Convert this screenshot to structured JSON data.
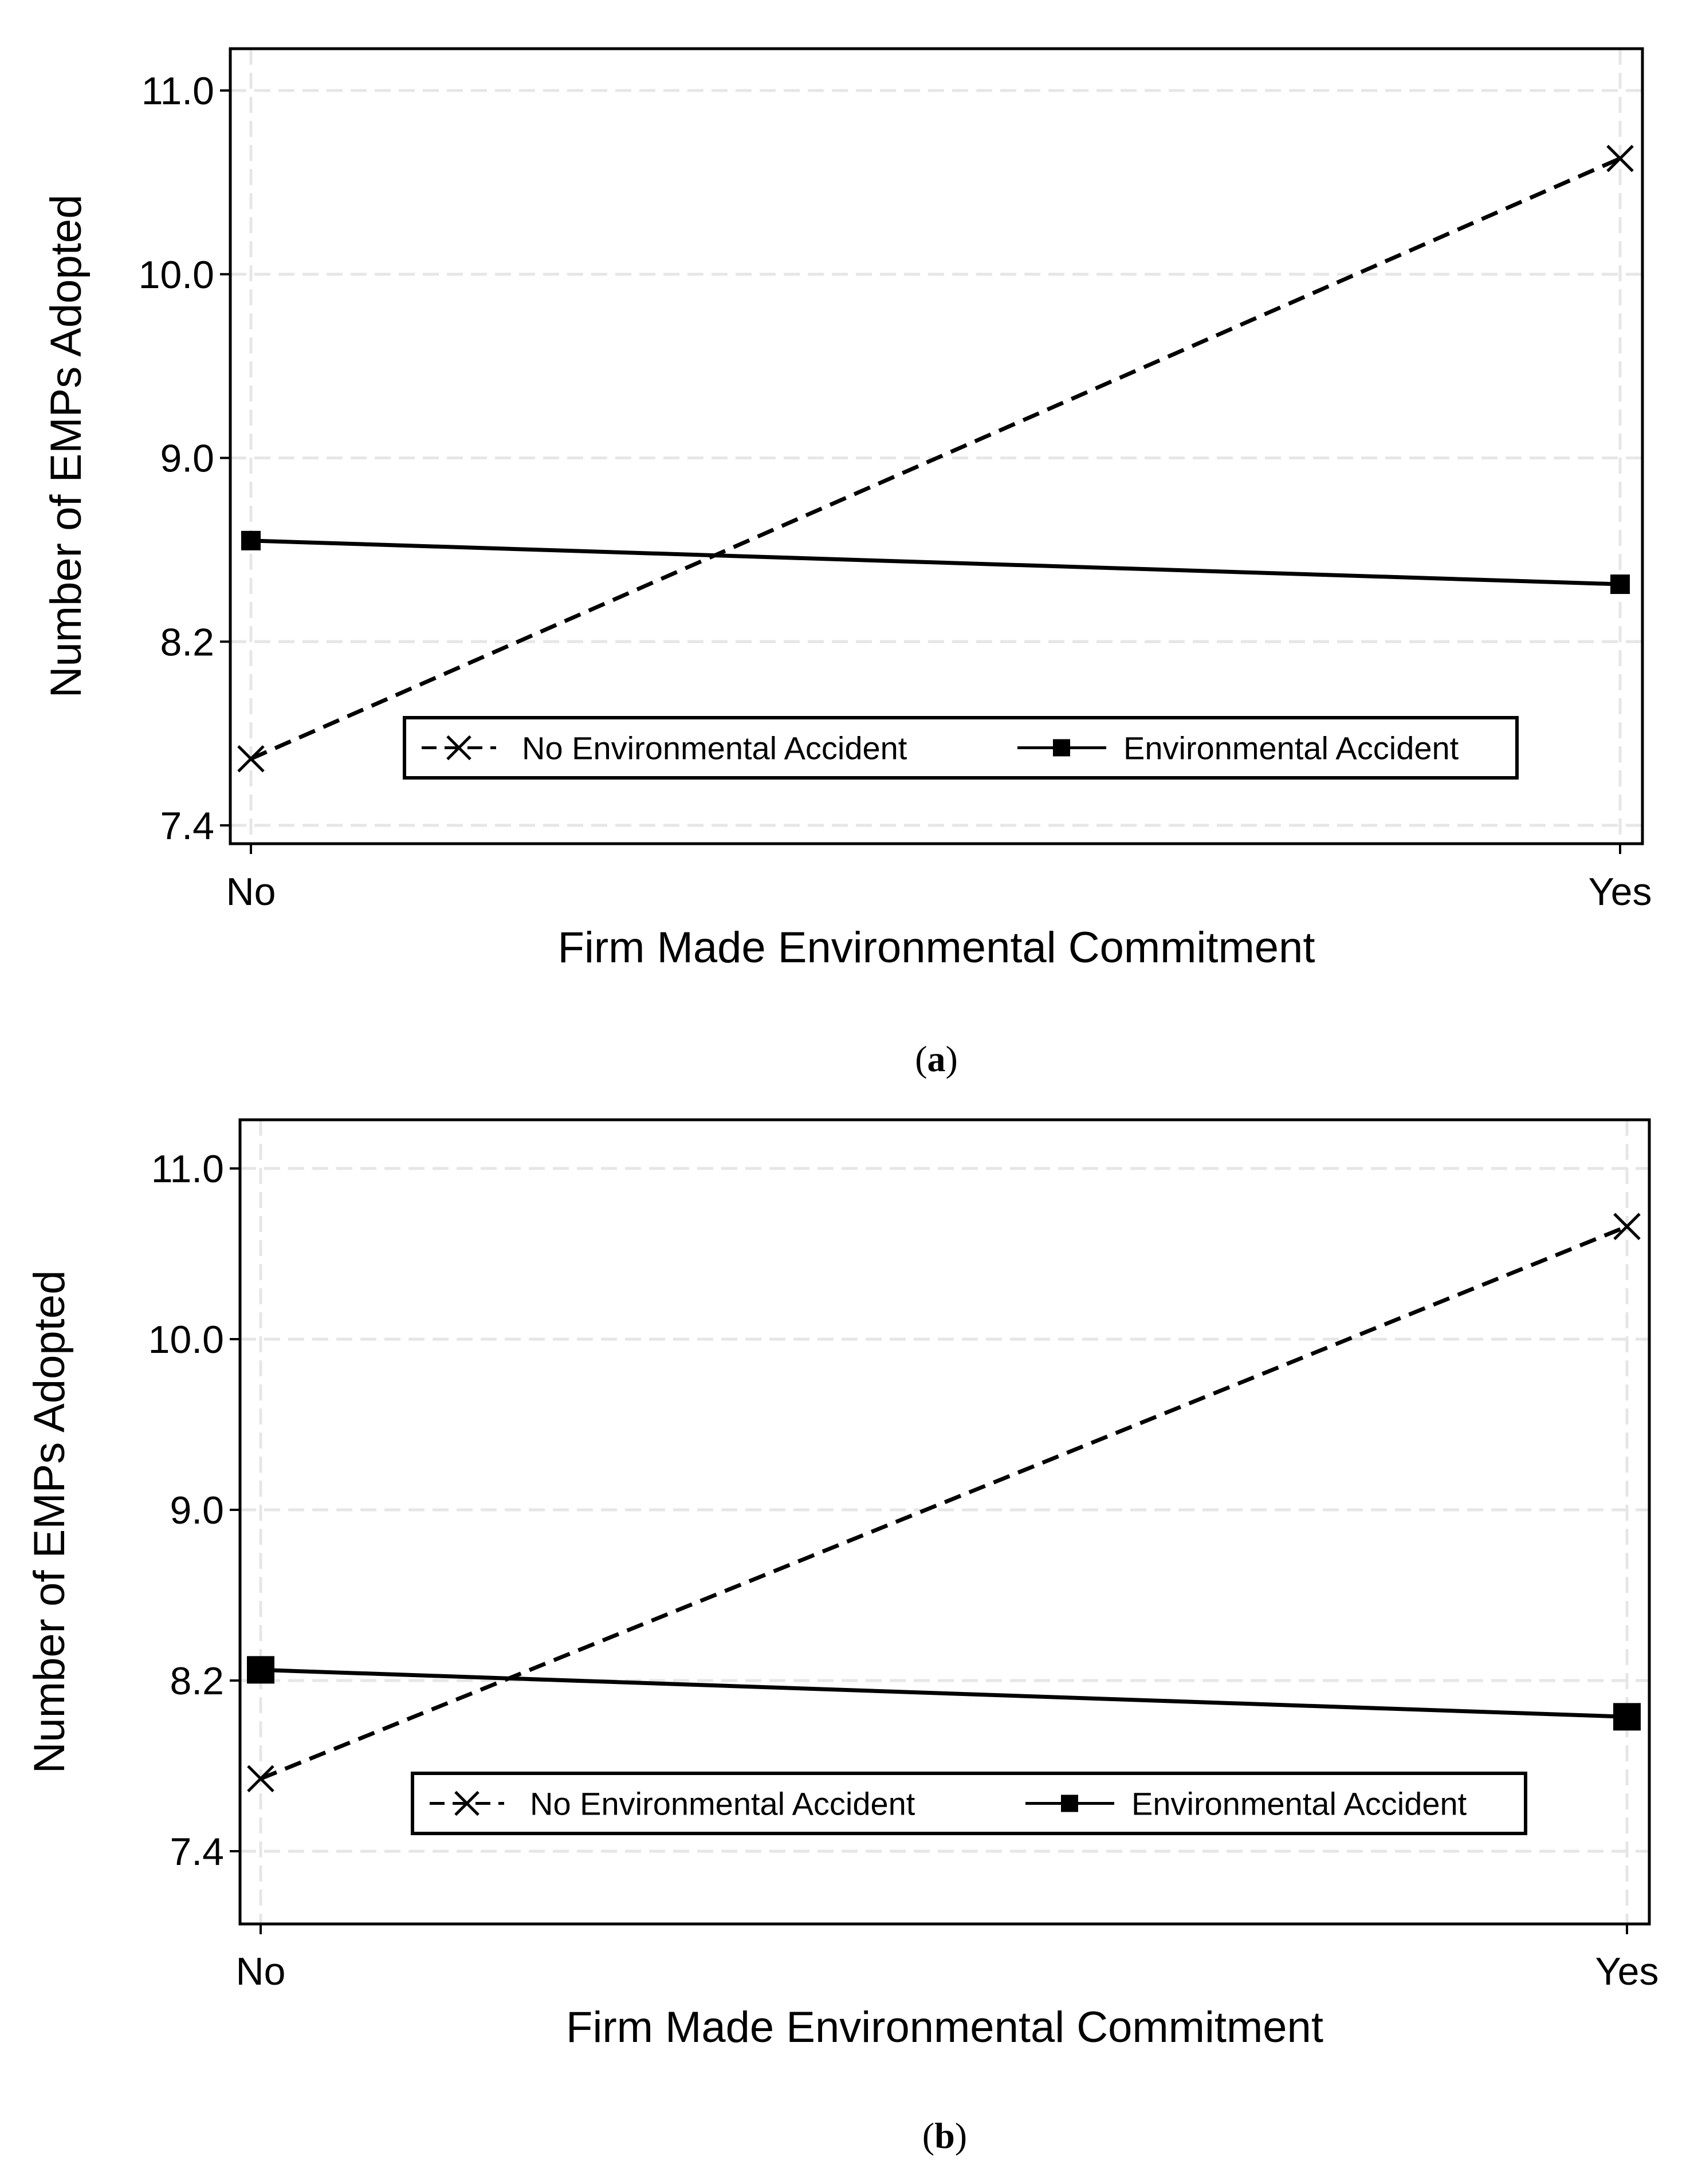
{
  "chart_data": [
    {
      "type": "line",
      "caption": "(a)",
      "caption_letter": "a",
      "xlabel": "Firm Made Environmental Commitment",
      "ylabel": "Number of EMPs Adopted",
      "categories": [
        "No",
        "Yes"
      ],
      "y_tick_labels": [
        "11.0",
        "10.0",
        "9.0",
        "8.2",
        "7.4"
      ],
      "y_tick_values": [
        11.0,
        10.0,
        9.0,
        8.2,
        7.4
      ],
      "grid": true,
      "legend_position": "bottom-center (inside)",
      "series": [
        {
          "name": "No Environmental Accident",
          "style": "dashed",
          "marker": "x",
          "values": [
            7.69,
            10.63
          ]
        },
        {
          "name": "Environmental Accident",
          "style": "solid",
          "marker": "square",
          "values": [
            8.64,
            8.45
          ]
        }
      ]
    },
    {
      "type": "line",
      "caption": "(b)",
      "caption_letter": "b",
      "xlabel": "Firm Made Environmental Commitment",
      "ylabel": "Number of EMPs Adopted",
      "categories": [
        "No",
        "Yes"
      ],
      "y_tick_labels": [
        "11.0",
        "10.0",
        "9.0",
        "8.2",
        "7.4"
      ],
      "y_tick_values": [
        11.0,
        10.0,
        9.0,
        8.2,
        7.4
      ],
      "grid": true,
      "legend_position": "bottom-center (inside)",
      "series": [
        {
          "name": "No Environmental Accident",
          "style": "dashed",
          "marker": "x",
          "values": [
            7.74,
            10.66
          ]
        },
        {
          "name": "Environmental Accident",
          "style": "solid",
          "marker": "square",
          "values": [
            8.25,
            8.03
          ]
        }
      ]
    }
  ],
  "colors": {
    "line": "#000000",
    "grid": "#e6e6e6",
    "background": "#ffffff"
  }
}
